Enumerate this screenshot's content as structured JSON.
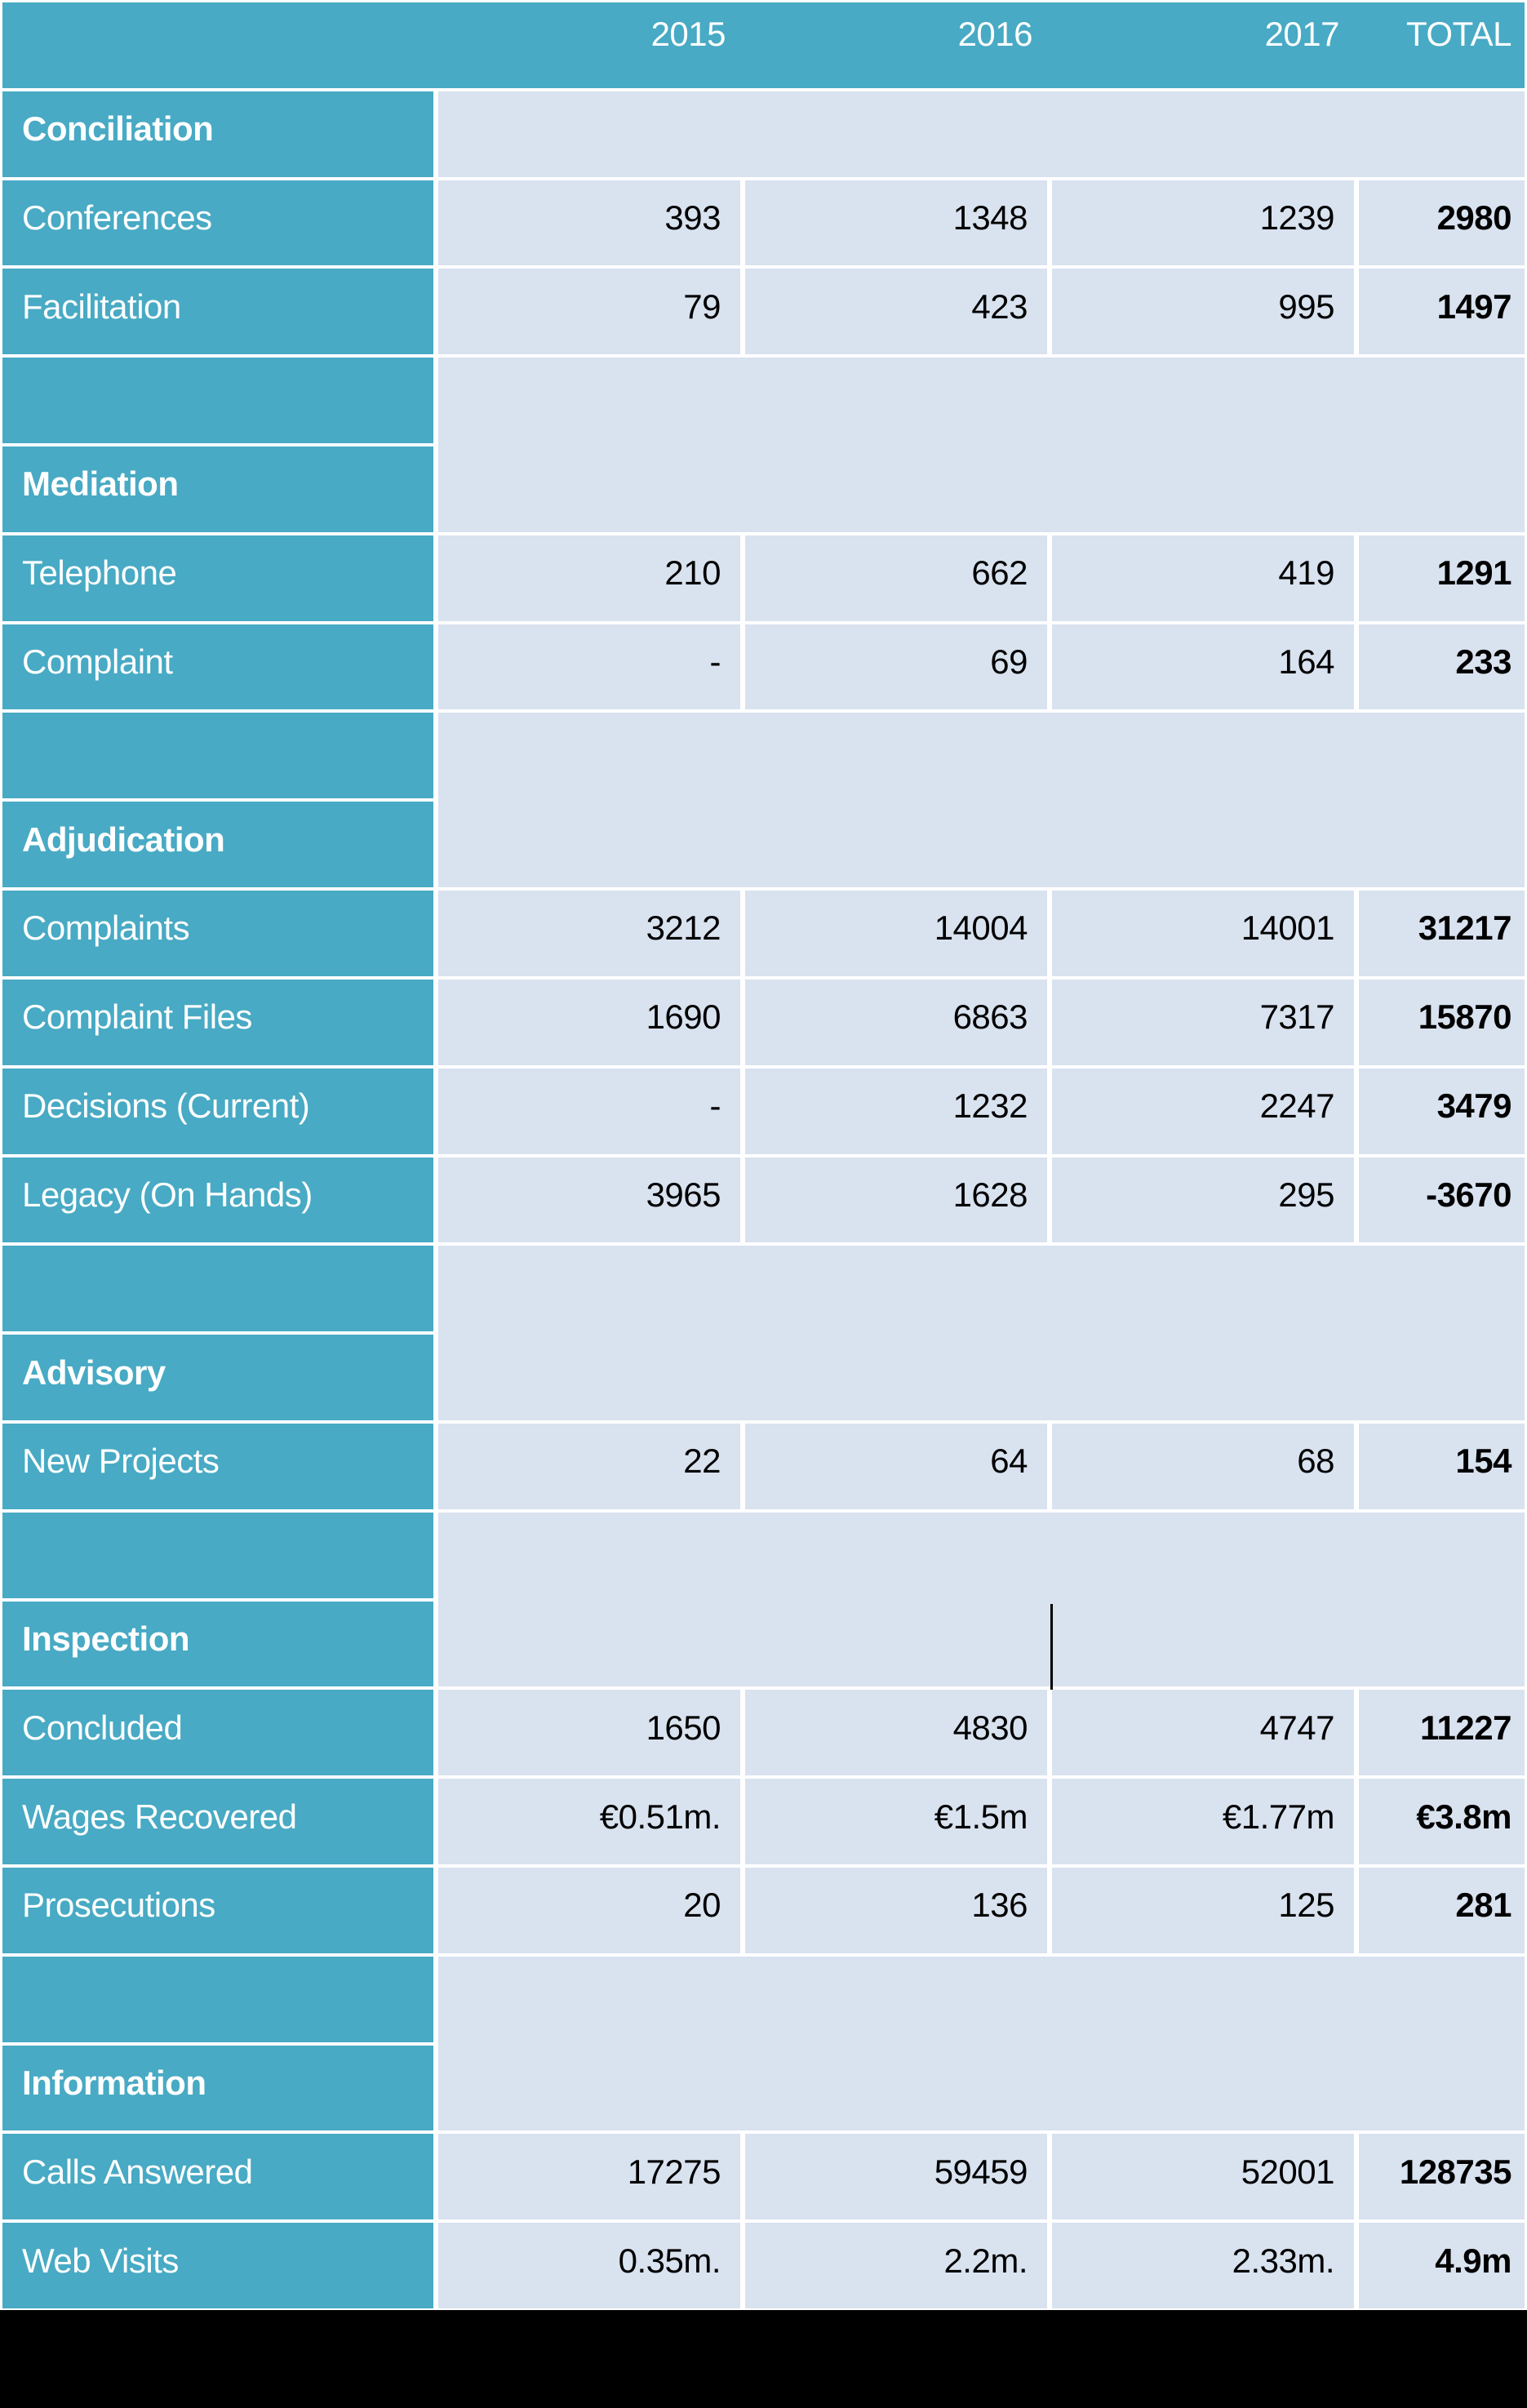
{
  "chart_data": {
    "type": "table",
    "year_headers": [
      "2015",
      "2016",
      "2017",
      "TOTAL"
    ],
    "sections": [
      {
        "title": "Conciliation",
        "spacer_above": false,
        "rows": [
          {
            "label": "Conferences",
            "values": [
              "393",
              "1348",
              "1239",
              "2980"
            ]
          },
          {
            "label": "Facilitation",
            "values": [
              "79",
              "423",
              "995",
              "1497"
            ]
          }
        ]
      },
      {
        "title": "Mediation",
        "spacer_above": true,
        "rows": [
          {
            "label": "Telephone",
            "values": [
              "210",
              "662",
              "419",
              "1291"
            ]
          },
          {
            "label": "Complaint",
            "values": [
              "-",
              "69",
              "164",
              "233"
            ]
          }
        ]
      },
      {
        "title": "Adjudication",
        "spacer_above": true,
        "rows": [
          {
            "label": "Complaints",
            "values": [
              "3212",
              "14004",
              "14001",
              "31217"
            ]
          },
          {
            "label": "Complaint Files",
            "values": [
              "1690",
              "6863",
              "7317",
              "15870"
            ]
          },
          {
            "label": "Decisions (Current)",
            "values": [
              "-",
              "1232",
              "2247",
              "3479"
            ]
          },
          {
            "label": "Legacy (On Hands)",
            "values": [
              "3965",
              "1628",
              "295",
              "-3670"
            ]
          }
        ]
      },
      {
        "title": "Advisory",
        "spacer_above": true,
        "rows": [
          {
            "label": "New Projects",
            "values": [
              "22",
              "64",
              "68",
              "154"
            ]
          }
        ]
      },
      {
        "title": "Inspection",
        "spacer_above": true,
        "rows": [
          {
            "label": "Concluded",
            "values": [
              "1650",
              "4830",
              "4747",
              "11227"
            ]
          },
          {
            "label": "Wages Recovered",
            "values": [
              "€0.51m.",
              "€1.5m",
              "€1.77m",
              "€3.8m"
            ]
          },
          {
            "label": "Prosecutions",
            "values": [
              "20",
              "136",
              "125",
              "281"
            ]
          }
        ]
      },
      {
        "title": "Information",
        "spacer_above": true,
        "rows": [
          {
            "label": "Calls Answered",
            "values": [
              "17275",
              "59459",
              "52001",
              "128735"
            ]
          },
          {
            "label": "Web Visits",
            "values": [
              "0.35m.",
              "2.2m.",
              "2.33m.",
              "4.9m"
            ]
          }
        ]
      }
    ]
  },
  "colors": {
    "teal": "#48aac4",
    "light_cell": "#d9e2ef",
    "grid_line": "#ffffff",
    "value_text": "#000000",
    "label_text": "#ffffff",
    "bottom_band": "#000000"
  }
}
